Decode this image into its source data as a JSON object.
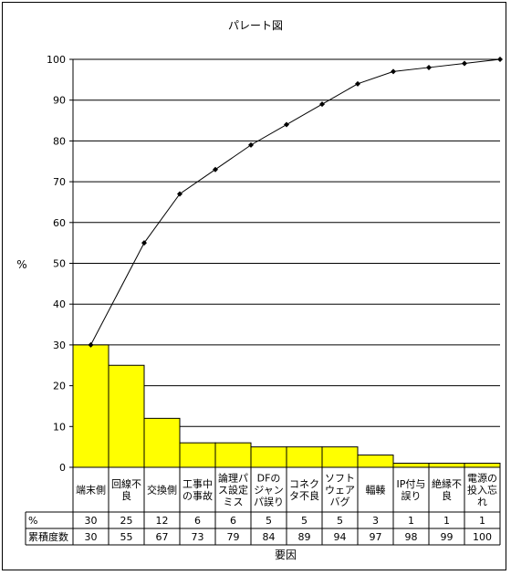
{
  "chart_data": {
    "type": "bar",
    "title": "パレート図",
    "ylabel": "%",
    "xlabel": "要因",
    "ylim": [
      0,
      100
    ],
    "yticks": [
      0,
      10,
      20,
      30,
      40,
      50,
      60,
      70,
      80,
      90,
      100
    ],
    "grid": true,
    "categories": [
      [
        "端末側"
      ],
      [
        "回線不",
        "良"
      ],
      [
        "交換側"
      ],
      [
        "工事中",
        "の事故"
      ],
      [
        "論理パ",
        "ス設定",
        "ミス"
      ],
      [
        "DFの",
        "ジャン",
        "パ誤り"
      ],
      [
        "コネク",
        "タ不良"
      ],
      [
        "ソフト",
        "ウェア",
        "バグ"
      ],
      [
        "輻輳"
      ],
      [
        "IP付与",
        "誤り"
      ],
      [
        "絶縁不",
        "良"
      ],
      [
        "電源の",
        "投入忘",
        "れ"
      ]
    ],
    "series": [
      {
        "values": [
          30,
          25,
          12,
          6,
          6,
          5,
          5,
          5,
          3,
          1,
          1,
          1
        ]
      },
      {
        "values": [
          30,
          55,
          67,
          73,
          79,
          84,
          89,
          94,
          97,
          98,
          99,
          100
        ]
      }
    ],
    "table": {
      "rows": [
        {
          "label": "%",
          "values": [
            30,
            25,
            12,
            6,
            6,
            5,
            5,
            5,
            3,
            1,
            1,
            1
          ]
        },
        {
          "label": "累積度数",
          "values": [
            30,
            55,
            67,
            73,
            79,
            84,
            89,
            94,
            97,
            98,
            99,
            100
          ]
        }
      ]
    },
    "colors": {
      "bar": "#ffff00",
      "bar_edge": "#000000",
      "line": "#000000",
      "grid": "#000000"
    }
  }
}
